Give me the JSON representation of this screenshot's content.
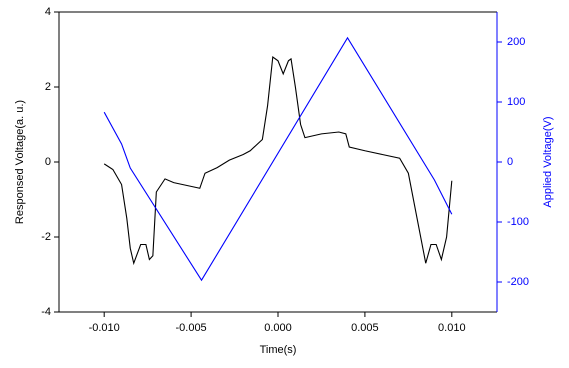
{
  "chart_data": {
    "type": "line",
    "x_label": "Time(s)",
    "y_label": "Responsed Voltage(a. u.)",
    "y2_label": "Applied Voltage(V)",
    "xlim": [
      -0.0126,
      0.0126
    ],
    "xticks": [
      {
        "value": -0.01,
        "label": "-0.010"
      },
      {
        "value": -0.005,
        "label": "-0.005"
      },
      {
        "value": 0,
        "label": "0.000"
      },
      {
        "value": 0.005,
        "label": "0.005"
      },
      {
        "value": 0.01,
        "label": "0.010"
      }
    ],
    "ylim": [
      -4,
      4
    ],
    "yticks": [
      -4,
      -2,
      0,
      2,
      4
    ],
    "y2lim": [
      -250,
      250
    ],
    "y2ticks": [
      -200,
      -100,
      0,
      100,
      200
    ],
    "y2_color": "#0000ff",
    "series": [
      {
        "name": "Responsed Voltage",
        "color": "#000000",
        "x": [
          -0.01,
          -0.0095,
          -0.009,
          -0.0087,
          -0.0085,
          -0.0083,
          -0.0079,
          -0.0076,
          -0.0074,
          -0.0072,
          -0.007,
          -0.0065,
          -0.006,
          -0.0055,
          -0.005,
          -0.0045,
          -0.0042,
          -0.0035,
          -0.0028,
          -0.002,
          -0.0016,
          -0.0009,
          -0.0006,
          -0.0003,
          0,
          0.0003,
          0.0006,
          0.00075,
          0.001,
          0.0013,
          0.00155,
          0.0025,
          0.0035,
          0.0039,
          0.0041,
          0.005,
          0.006,
          0.007,
          0.0075,
          0.008,
          0.0085,
          0.0088,
          0.0091,
          0.0094,
          0.0097,
          0.01
        ],
        "values": [
          -0.05,
          -0.2,
          -0.6,
          -1.5,
          -2.3,
          -2.7,
          -2.2,
          -2.2,
          -2.6,
          -2.5,
          -0.8,
          -0.45,
          -0.55,
          -0.6,
          -0.65,
          -0.7,
          -0.3,
          -0.15,
          0.05,
          0.2,
          0.3,
          0.6,
          1.5,
          2.8,
          2.7,
          2.35,
          2.7,
          2.75,
          2.0,
          1.0,
          0.65,
          0.75,
          0.8,
          0.75,
          0.4,
          0.3,
          0.2,
          0.1,
          -0.3,
          -1.5,
          -2.7,
          -2.2,
          -2.2,
          -2.6,
          -2.0,
          -0.5
        ]
      },
      {
        "name": "Applied Voltage",
        "color": "#0000ff",
        "axis": "y2",
        "x": [
          -0.01,
          -0.009,
          -0.0085,
          -0.0044,
          0.004,
          0.009,
          0.01
        ],
        "values": [
          83,
          30,
          -10,
          -197,
          207,
          -30,
          -87
        ]
      }
    ]
  }
}
